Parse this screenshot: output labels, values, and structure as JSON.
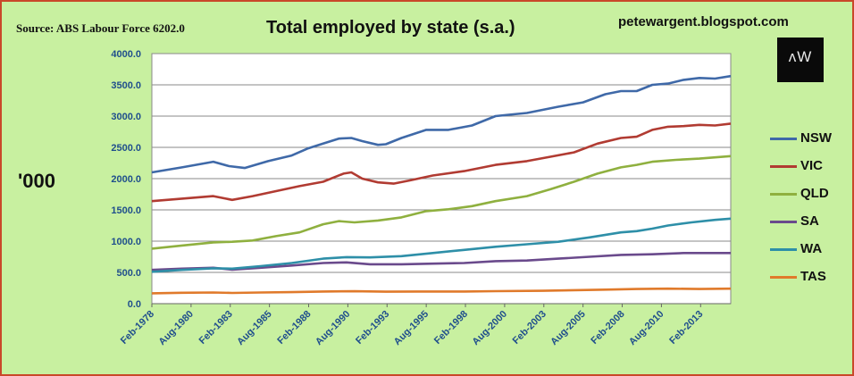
{
  "header": {
    "source": "Source: ABS Labour Force 6202.0",
    "title": "Total employed by state (s.a.)",
    "blog": "petewargent.blogspot.com",
    "logo": "ʌW"
  },
  "chart_data": {
    "type": "line",
    "title": "Total employed by state (s.a.)",
    "ylabel": "'000",
    "ylim": [
      0,
      4000
    ],
    "yticks": [
      "0.0",
      "500.0",
      "1000.0",
      "1500.0",
      "2000.0",
      "2500.0",
      "3000.0",
      "3500.0",
      "4000.0"
    ],
    "xlim": [
      1978.08,
      2015.0
    ],
    "xticks": [
      {
        "label": "Feb-1978",
        "t": 1978.08
      },
      {
        "label": "Aug-1980",
        "t": 1980.58
      },
      {
        "label": "Feb-1983",
        "t": 1983.08
      },
      {
        "label": "Aug-1985",
        "t": 1985.58
      },
      {
        "label": "Feb-1988",
        "t": 1988.08
      },
      {
        "label": "Aug-1990",
        "t": 1990.58
      },
      {
        "label": "Feb-1993",
        "t": 1993.08
      },
      {
        "label": "Aug-1995",
        "t": 1995.58
      },
      {
        "label": "Feb-1998",
        "t": 1998.08
      },
      {
        "label": "Aug-2000",
        "t": 2000.58
      },
      {
        "label": "Feb-2003",
        "t": 2003.08
      },
      {
        "label": "Aug-2005",
        "t": 2005.58
      },
      {
        "label": "Feb-2008",
        "t": 2008.08
      },
      {
        "label": "Aug-2010",
        "t": 2010.58
      },
      {
        "label": "Feb-2013",
        "t": 2013.08
      }
    ],
    "grid": true,
    "legend_position": "right",
    "series": [
      {
        "name": "NSW",
        "color": "#3f69a8",
        "points": [
          [
            1978.08,
            2100
          ],
          [
            1980,
            2180
          ],
          [
            1982,
            2270
          ],
          [
            1983.0,
            2200
          ],
          [
            1984,
            2170
          ],
          [
            1985.5,
            2280
          ],
          [
            1987,
            2370
          ],
          [
            1988,
            2480
          ],
          [
            1989,
            2560
          ],
          [
            1990.0,
            2640
          ],
          [
            1990.8,
            2650
          ],
          [
            1991.5,
            2600
          ],
          [
            1992.5,
            2540
          ],
          [
            1993,
            2550
          ],
          [
            1994,
            2650
          ],
          [
            1995.58,
            2780
          ],
          [
            1997,
            2780
          ],
          [
            1998.5,
            2850
          ],
          [
            2000,
            3000
          ],
          [
            2002,
            3050
          ],
          [
            2003,
            3100
          ],
          [
            2004,
            3150
          ],
          [
            2005.58,
            3220
          ],
          [
            2007,
            3350
          ],
          [
            2008.0,
            3400
          ],
          [
            2009,
            3400
          ],
          [
            2010.0,
            3500
          ],
          [
            2011,
            3520
          ],
          [
            2012,
            3580
          ],
          [
            2013,
            3610
          ],
          [
            2014,
            3600
          ],
          [
            2015,
            3640
          ]
        ]
      },
      {
        "name": "VIC",
        "color": "#b13b32",
        "points": [
          [
            1978.08,
            1640
          ],
          [
            1980,
            1680
          ],
          [
            1982,
            1720
          ],
          [
            1983.2,
            1660
          ],
          [
            1984.5,
            1720
          ],
          [
            1986,
            1800
          ],
          [
            1987.5,
            1880
          ],
          [
            1989,
            1950
          ],
          [
            1990.3,
            2080
          ],
          [
            1990.8,
            2100
          ],
          [
            1991.5,
            2000
          ],
          [
            1992.5,
            1940
          ],
          [
            1993.5,
            1920
          ],
          [
            1994.5,
            1970
          ],
          [
            1996,
            2050
          ],
          [
            1998,
            2120
          ],
          [
            2000,
            2220
          ],
          [
            2002,
            2280
          ],
          [
            2003.5,
            2350
          ],
          [
            2005,
            2420
          ],
          [
            2006.5,
            2560
          ],
          [
            2008,
            2650
          ],
          [
            2009,
            2670
          ],
          [
            2010,
            2780
          ],
          [
            2011,
            2830
          ],
          [
            2012,
            2840
          ],
          [
            2013,
            2860
          ],
          [
            2014,
            2850
          ],
          [
            2015,
            2880
          ]
        ]
      },
      {
        "name": "QLD",
        "color": "#8fb03f",
        "points": [
          [
            1978.08,
            880
          ],
          [
            1980,
            930
          ],
          [
            1982,
            980
          ],
          [
            1983.2,
            990
          ],
          [
            1984.5,
            1010
          ],
          [
            1986,
            1080
          ],
          [
            1987.5,
            1140
          ],
          [
            1989,
            1270
          ],
          [
            1990,
            1320
          ],
          [
            1991,
            1300
          ],
          [
            1992.5,
            1330
          ],
          [
            1994,
            1380
          ],
          [
            1995.58,
            1480
          ],
          [
            1997,
            1510
          ],
          [
            1998.5,
            1560
          ],
          [
            2000,
            1640
          ],
          [
            2002,
            1720
          ],
          [
            2003.5,
            1830
          ],
          [
            2005,
            1950
          ],
          [
            2006.5,
            2080
          ],
          [
            2008,
            2180
          ],
          [
            2009,
            2220
          ],
          [
            2010,
            2270
          ],
          [
            2011.5,
            2300
          ],
          [
            2013,
            2320
          ],
          [
            2015,
            2360
          ]
        ]
      },
      {
        "name": "SA",
        "color": "#6a4a8c",
        "points": [
          [
            1978.08,
            540
          ],
          [
            1980,
            560
          ],
          [
            1982,
            575
          ],
          [
            1983.2,
            545
          ],
          [
            1985,
            575
          ],
          [
            1987,
            610
          ],
          [
            1989,
            650
          ],
          [
            1990.5,
            660
          ],
          [
            1992,
            630
          ],
          [
            1994,
            630
          ],
          [
            1996,
            640
          ],
          [
            1998,
            650
          ],
          [
            2000,
            680
          ],
          [
            2002,
            690
          ],
          [
            2004,
            720
          ],
          [
            2006,
            750
          ],
          [
            2008,
            780
          ],
          [
            2010,
            790
          ],
          [
            2012,
            810
          ],
          [
            2015,
            810
          ]
        ]
      },
      {
        "name": "WA",
        "color": "#2e8fa8",
        "points": [
          [
            1978.08,
            510
          ],
          [
            1980,
            540
          ],
          [
            1982,
            565
          ],
          [
            1983.2,
            560
          ],
          [
            1985,
            600
          ],
          [
            1987,
            650
          ],
          [
            1989,
            720
          ],
          [
            1990.5,
            745
          ],
          [
            1992,
            740
          ],
          [
            1994,
            760
          ],
          [
            1996,
            810
          ],
          [
            1998,
            860
          ],
          [
            2000,
            910
          ],
          [
            2002,
            950
          ],
          [
            2004,
            990
          ],
          [
            2006,
            1060
          ],
          [
            2008,
            1140
          ],
          [
            2009,
            1160
          ],
          [
            2010,
            1200
          ],
          [
            2011,
            1250
          ],
          [
            2012.5,
            1300
          ],
          [
            2014,
            1340
          ],
          [
            2015,
            1360
          ]
        ]
      },
      {
        "name": "TAS",
        "color": "#e07a2b",
        "points": [
          [
            1978.08,
            165
          ],
          [
            1980,
            175
          ],
          [
            1982,
            178
          ],
          [
            1983.2,
            172
          ],
          [
            1985,
            178
          ],
          [
            1987,
            185
          ],
          [
            1989,
            195
          ],
          [
            1991,
            198
          ],
          [
            1993,
            192
          ],
          [
            1995,
            195
          ],
          [
            1998,
            195
          ],
          [
            2000,
            200
          ],
          [
            2003,
            205
          ],
          [
            2005,
            215
          ],
          [
            2007,
            225
          ],
          [
            2009,
            235
          ],
          [
            2011,
            240
          ],
          [
            2013,
            235
          ],
          [
            2015,
            240
          ]
        ]
      }
    ]
  }
}
